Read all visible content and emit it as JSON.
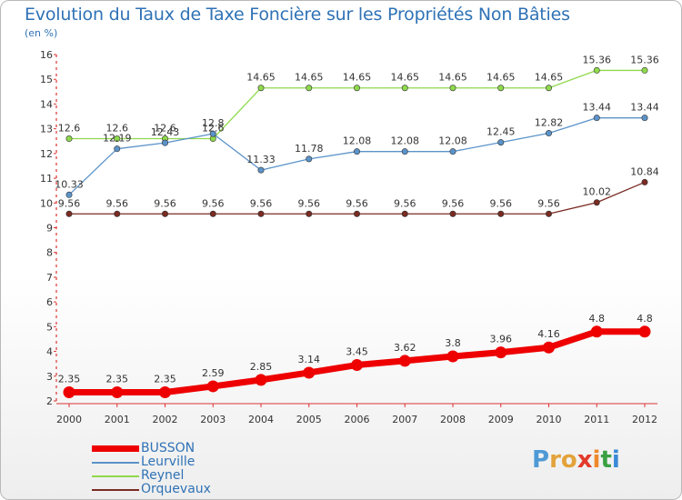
{
  "title": "Evolution du Taux de Taxe Foncière sur les Propriétés Non Bâties",
  "unit": "(en %)",
  "logo": {
    "text": "Proxiti",
    "letter_colors": [
      "#4f9ad6",
      "#e3a23a",
      "#e3a23a",
      "#e23a2a",
      "#ef8a2a",
      "#3aa044",
      "#3a8ad6"
    ]
  },
  "chart_data": {
    "type": "line",
    "x": [
      "2000",
      "2001",
      "2002",
      "2003",
      "2004",
      "2005",
      "2006",
      "2007",
      "2008",
      "2009",
      "2010",
      "2011",
      "2012"
    ],
    "ylim": [
      2,
      16
    ],
    "yticks": [
      "2",
      "3",
      "4",
      "5",
      "6",
      "7",
      "8",
      "9",
      "10",
      "11",
      "12",
      "13",
      "14",
      "15",
      "16"
    ],
    "grid": false,
    "legend_position": "bottom-left",
    "series": [
      {
        "name": "BUSSON",
        "color": "#ee0000",
        "bold": true,
        "values": [
          2.35,
          2.35,
          2.35,
          2.59,
          2.85,
          3.14,
          3.45,
          3.62,
          3.8,
          3.96,
          4.16,
          4.8,
          4.8
        ],
        "labels": [
          "2.35",
          "2.35",
          "2.35",
          "2.59",
          "2.85",
          "3.14",
          "3.45",
          "3.62",
          "3.8",
          "3.96",
          "4.16",
          "4.8",
          "4.8"
        ]
      },
      {
        "name": "Leurville",
        "color": "#5b93c9",
        "bold": false,
        "values": [
          10.33,
          12.19,
          12.43,
          12.8,
          11.33,
          11.78,
          12.08,
          12.08,
          12.08,
          12.45,
          12.82,
          13.44,
          13.44
        ],
        "labels": [
          "10.33",
          "12.19",
          "12.43",
          "12.8",
          "11.33",
          "11.78",
          "12.08",
          "12.08",
          "12.08",
          "12.45",
          "12.82",
          "13.44",
          "13.44"
        ]
      },
      {
        "name": "Reynel",
        "color": "#8fd94c",
        "bold": false,
        "values": [
          12.6,
          12.6,
          12.6,
          12.6,
          14.65,
          14.65,
          14.65,
          14.65,
          14.65,
          14.65,
          14.65,
          15.36,
          15.36
        ],
        "labels": [
          "12.6",
          "12.6",
          "12.6",
          "12.6",
          "14.65",
          "14.65",
          "14.65",
          "14.65",
          "14.65",
          "14.65",
          "14.65",
          "15.36",
          "15.36"
        ]
      },
      {
        "name": "Orquevaux",
        "color": "#7a2b22",
        "bold": false,
        "values": [
          9.56,
          9.56,
          9.56,
          9.56,
          9.56,
          9.56,
          9.56,
          9.56,
          9.56,
          9.56,
          9.56,
          10.02,
          10.84
        ],
        "labels": [
          "9.56",
          "9.56",
          "9.56",
          "9.56",
          "9.56",
          "9.56",
          "9.56",
          "9.56",
          "9.56",
          "9.56",
          "9.56",
          "10.02",
          "10.84"
        ]
      }
    ]
  }
}
